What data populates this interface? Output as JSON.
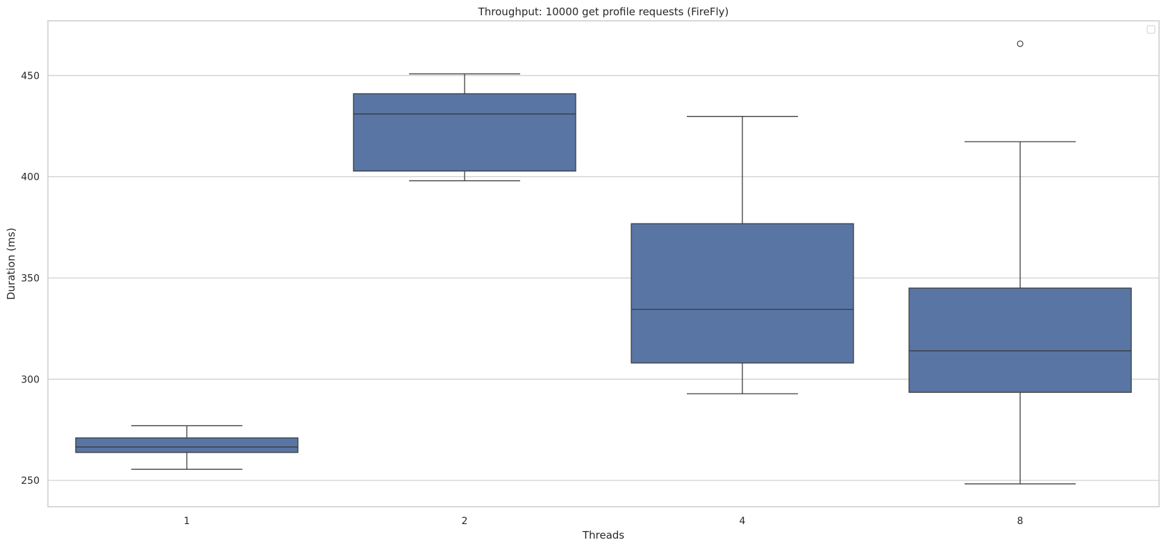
{
  "chart_data": {
    "type": "box",
    "title": "Throughput: 10000 get profile requests (FireFly)",
    "xlabel": "Threads",
    "ylabel": "Duration (ms)",
    "categories": [
      "1",
      "2",
      "4",
      "8"
    ],
    "ylim": [
      237,
      477
    ],
    "yticks": [
      250,
      300,
      350,
      400,
      450
    ],
    "grid": true,
    "legend": "top-right (empty)",
    "box_color": "#5875a4",
    "edge_color": "#3b3b3b",
    "grid_color": "#cccccc",
    "boxes": [
      {
        "category": "1",
        "whisker_low": 255.5,
        "q1": 263.8,
        "median": 266.5,
        "q3": 271.0,
        "whisker_high": 277.0,
        "outliers": []
      },
      {
        "category": "2",
        "whisker_low": 398.0,
        "q1": 402.8,
        "median": 431.0,
        "q3": 441.0,
        "whisker_high": 450.8,
        "outliers": []
      },
      {
        "category": "4",
        "whisker_low": 292.8,
        "q1": 308.0,
        "median": 334.5,
        "q3": 376.8,
        "whisker_high": 429.8,
        "outliers": []
      },
      {
        "category": "8",
        "whisker_low": 248.3,
        "q1": 293.5,
        "median": 314.0,
        "q3": 345.0,
        "whisker_high": 417.3,
        "outliers": [
          465.7
        ]
      }
    ]
  }
}
